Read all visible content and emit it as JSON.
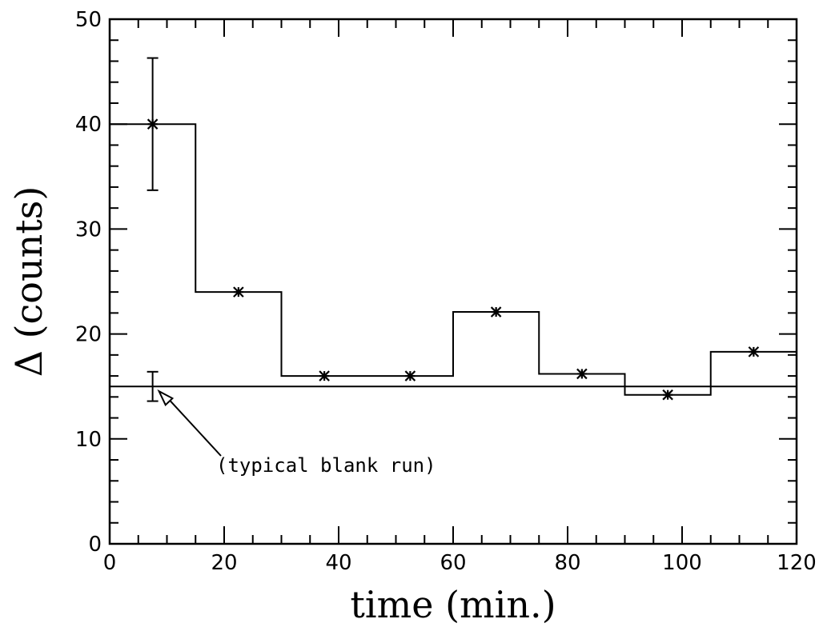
{
  "chart_data": {
    "type": "step",
    "xlabel": "time (min.)",
    "ylabel": "Δ (counts)",
    "xlim": [
      0,
      120
    ],
    "ylim": [
      0,
      50
    ],
    "x_ticks": [
      0,
      20,
      40,
      60,
      80,
      100,
      120
    ],
    "x_tick_labels": [
      "0",
      "20",
      "40",
      "60",
      "80",
      "100",
      "120"
    ],
    "y_ticks": [
      0,
      10,
      20,
      30,
      40,
      50
    ],
    "y_tick_labels": [
      "0",
      "10",
      "20",
      "30",
      "40",
      "50"
    ],
    "grid": false,
    "series": [
      {
        "bin_edges": [
          0,
          15,
          30,
          45,
          60,
          75,
          90,
          105,
          120
        ],
        "x": [
          7.5,
          22.5,
          37.5,
          52.5,
          67.5,
          82.5,
          97.5,
          112.5
        ],
        "values": [
          40.0,
          24.0,
          16.0,
          16.0,
          22.1,
          16.2,
          14.2,
          18.3
        ],
        "errors": [
          6.3,
          0.3,
          0.3,
          0.3,
          0.4,
          0.3,
          0.3,
          0.3
        ]
      }
    ],
    "reference": {
      "y": 15.0,
      "x_marker": 7.5,
      "error": 1.4,
      "annotation": "(typical blank run)"
    }
  }
}
